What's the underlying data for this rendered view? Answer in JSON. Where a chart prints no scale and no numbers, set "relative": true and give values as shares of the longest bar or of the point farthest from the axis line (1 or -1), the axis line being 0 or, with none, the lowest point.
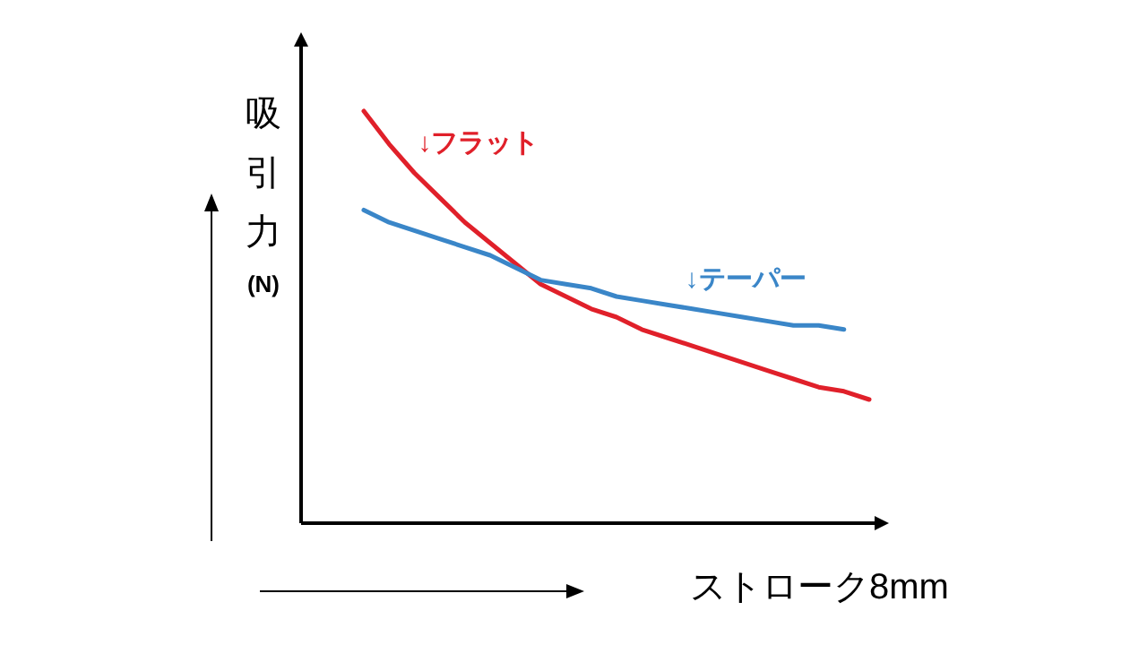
{
  "chart_data": {
    "type": "line",
    "relative": true,
    "grid": false,
    "ylabel": "吸引力(N)",
    "xlabel": "ストローク8mm",
    "categories": [
      null,
      null,
      null,
      null,
      null,
      null,
      null,
      null,
      null,
      null,
      null,
      null,
      null,
      null,
      null,
      null,
      null,
      null,
      null,
      null,
      null
    ],
    "series": [
      {
        "name": "↓フラット",
        "color": "#e0202a",
        "values": [
          1.0,
          0.92,
          0.85,
          0.79,
          0.73,
          0.68,
          0.63,
          0.58,
          0.55,
          0.52,
          0.5,
          0.47,
          0.45,
          0.43,
          0.41,
          0.39,
          0.37,
          0.35,
          0.33,
          0.32,
          0.3
        ]
      },
      {
        "name": "↓テーパー",
        "color": "#3a86c8",
        "values": [
          0.76,
          0.73,
          0.71,
          0.69,
          0.67,
          0.65,
          0.62,
          0.59,
          0.58,
          0.57,
          0.55,
          0.54,
          0.53,
          0.52,
          0.51,
          0.5,
          0.49,
          0.48,
          0.48,
          0.47,
          null
        ]
      }
    ]
  }
}
